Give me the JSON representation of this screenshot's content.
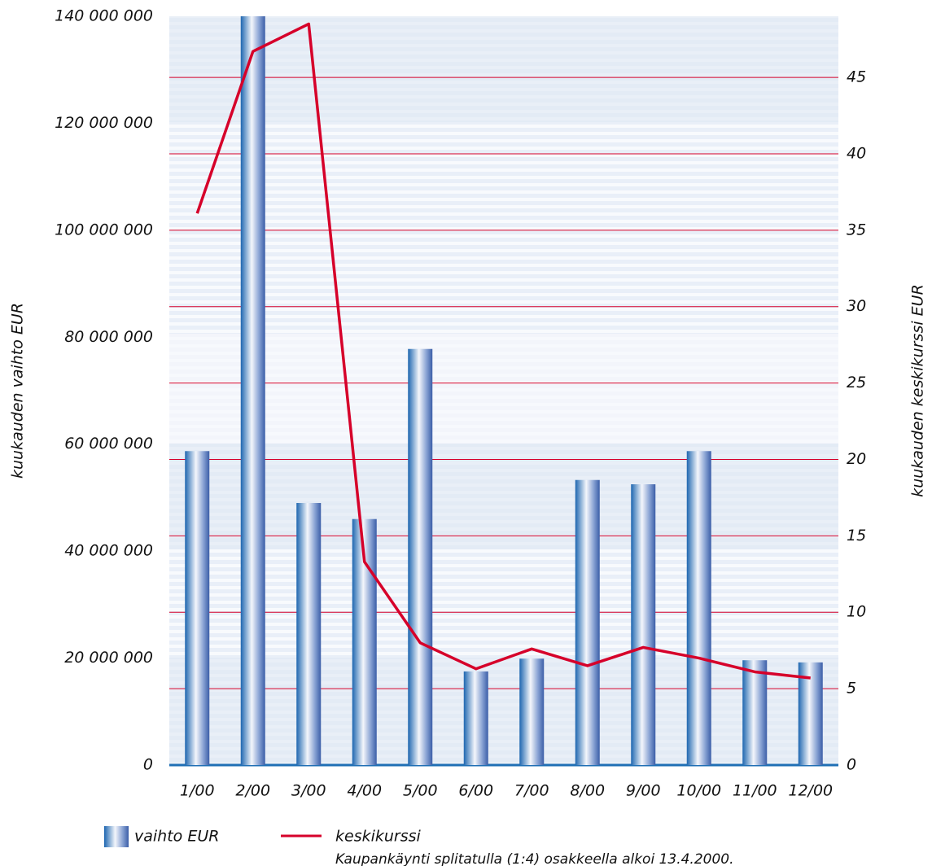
{
  "chart_data": {
    "type": "bar",
    "categories": [
      "1/00",
      "2/00",
      "3/00",
      "4/00",
      "5/00",
      "6/00",
      "7/00",
      "8/00",
      "9/00",
      "10/00",
      "11/00",
      "12/00"
    ],
    "series": [
      {
        "name": "vaihto EUR",
        "type": "bar",
        "color": "#1f6fb5",
        "values": [
          58700000,
          140000000,
          49000000,
          46000000,
          77800000,
          17500000,
          19900000,
          53300000,
          52500000,
          58700000,
          19600000,
          19200000
        ]
      },
      {
        "name": "keskikurssi",
        "type": "line",
        "axis": "y2",
        "color": "#d6002a",
        "values": [
          36.1,
          46.7,
          48.5,
          13.3,
          8.0,
          6.3,
          7.6,
          6.5,
          7.7,
          7.0,
          6.1,
          5.7
        ]
      }
    ],
    "ylabel": "kuukauden vaihto EUR",
    "y2label": "kuukauden keskikurssi EUR",
    "ylim": [
      0,
      140000000
    ],
    "yticks": [
      0,
      {
        "value": 20000000,
        "label": "20 000 000"
      },
      {
        "value": 40000000,
        "label": "40 000 000"
      },
      {
        "value": 60000000,
        "label": "60 000 000"
      },
      {
        "value": 80000000,
        "label": "80 000 000"
      },
      {
        "value": 100000000,
        "label": "100 000 000"
      },
      {
        "value": 120000000,
        "label": "120 000 000"
      },
      {
        "value": 140000000,
        "label": "140 000 000"
      }
    ],
    "y2lim": [
      0,
      49
    ],
    "y2ticks": [
      0,
      5,
      10,
      15,
      20,
      25,
      30,
      35,
      40,
      45
    ],
    "grid_color": "#d6002a",
    "note": "Kaupankäynti splitatulla (1:4) osakkeella alkoi 13.4.2000."
  }
}
